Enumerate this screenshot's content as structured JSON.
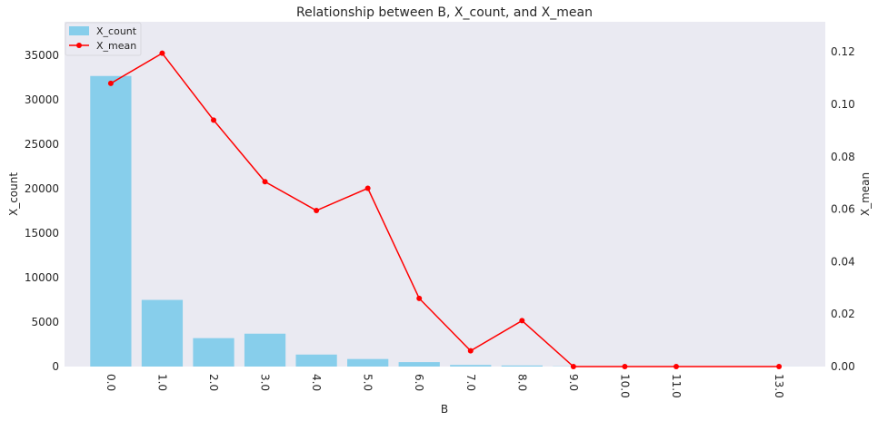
{
  "chart_data": {
    "type": "bar",
    "title": "Relationship between B, X_count, and X_mean",
    "xlabel": "B",
    "ylabel_left": "X_count",
    "ylabel_right": "X_mean",
    "x": [
      0.0,
      1.0,
      2.0,
      3.0,
      4.0,
      5.0,
      6.0,
      7.0,
      8.0,
      9.0,
      10.0,
      11.0,
      13.0
    ],
    "x_tick_labels": [
      "0.0",
      "1.0",
      "2.0",
      "3.0",
      "4.0",
      "5.0",
      "6.0",
      "7.0",
      "8.0",
      "9.0",
      "10.0",
      "11.0",
      "13.0"
    ],
    "series": [
      {
        "name": "X_count",
        "type": "bar",
        "axis": "left",
        "color": "#87ceeb",
        "values": [
          32700,
          7500,
          3200,
          3700,
          1350,
          850,
          500,
          180,
          120,
          30,
          15,
          10,
          3
        ]
      },
      {
        "name": "X_mean",
        "type": "line",
        "axis": "right",
        "color": "#ff0000",
        "marker": "circle",
        "values": [
          0.108,
          0.1195,
          0.094,
          0.0705,
          0.0595,
          0.068,
          0.026,
          0.006,
          0.0175,
          0.0,
          0.0,
          0.0,
          0.0
        ]
      }
    ],
    "ylim_left": [
      0,
      38800
    ],
    "ylim_right": [
      0,
      0.1315
    ],
    "yticks_left": [
      0,
      5000,
      10000,
      15000,
      20000,
      25000,
      30000,
      35000
    ],
    "yticks_left_labels": [
      "0",
      "5000",
      "10000",
      "15000",
      "20000",
      "25000",
      "30000",
      "35000"
    ],
    "yticks_right": [
      0.0,
      0.02,
      0.04,
      0.06,
      0.08,
      0.1,
      0.12
    ],
    "yticks_right_labels": [
      "0.00",
      "0.02",
      "0.04",
      "0.06",
      "0.08",
      "0.10",
      "0.12"
    ],
    "xlim": [
      -0.9,
      13.9
    ],
    "grid": false,
    "legend_position": "top-left",
    "background_color": "#eaeaf2",
    "tick_label_rotation": "rotated"
  }
}
